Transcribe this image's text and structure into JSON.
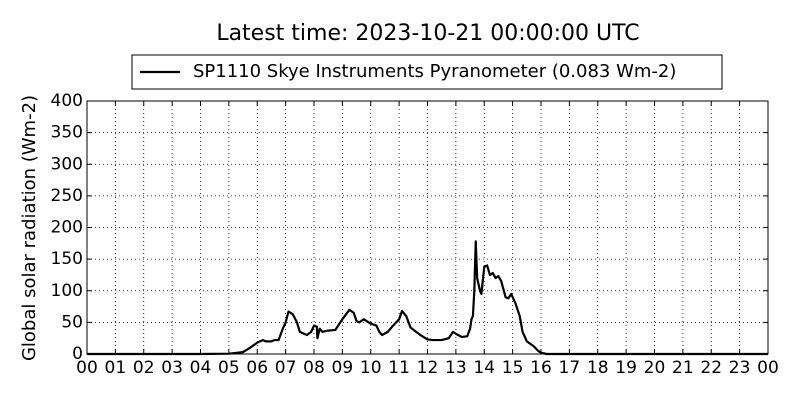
{
  "chart_data": {
    "type": "line",
    "title": "Latest time: 2023-10-21 00:00:00 UTC",
    "ylabel": "Global solar radiation (Wm-2)",
    "grid": true,
    "legend": "top",
    "x": [
      0,
      1,
      2,
      3,
      4,
      5,
      5.5,
      5.75,
      6.0,
      6.2,
      6.3,
      6.5,
      6.6,
      6.75,
      6.9,
      7.0,
      7.1,
      7.25,
      7.4,
      7.5,
      7.75,
      7.9,
      8.0,
      8.1,
      8.12,
      8.2,
      8.3,
      8.5,
      8.75,
      9.0,
      9.25,
      9.4,
      9.5,
      9.6,
      9.75,
      10.0,
      10.2,
      10.3,
      10.4,
      10.6,
      10.75,
      11.0,
      11.1,
      11.25,
      11.4,
      11.6,
      11.75,
      12.0,
      12.2,
      12.4,
      12.5,
      12.75,
      12.9,
      13.0,
      13.2,
      13.4,
      13.5,
      13.55,
      13.6,
      13.65,
      13.7,
      13.75,
      13.85,
      13.9,
      14.0,
      14.1,
      14.2,
      14.3,
      14.4,
      14.5,
      14.6,
      14.75,
      14.85,
      14.95,
      15.1,
      15.25,
      15.35,
      15.5,
      15.75,
      15.9,
      16.0,
      16.2,
      16.5,
      20,
      24
    ],
    "series": [
      {
        "name": "SP1110 Skye Instruments Pyranometer (0.083 Wm-2)",
        "color": "#000000",
        "values": [
          0,
          0,
          0,
          0,
          0,
          0.5,
          3,
          10,
          18,
          22,
          20,
          20,
          22,
          22,
          40,
          50,
          67,
          63,
          50,
          35,
          30,
          35,
          45,
          43,
          25,
          40,
          35,
          37,
          38,
          55,
          70,
          65,
          52,
          50,
          55,
          48,
          45,
          35,
          30,
          35,
          43,
          55,
          68,
          60,
          42,
          35,
          30,
          23,
          22,
          22,
          22,
          25,
          35,
          32,
          27,
          28,
          40,
          55,
          60,
          100,
          178,
          120,
          100,
          95,
          138,
          140,
          125,
          128,
          120,
          123,
          115,
          90,
          88,
          95,
          80,
          60,
          35,
          20,
          12,
          5,
          2,
          0,
          0,
          0,
          0
        ]
      }
    ],
    "xlim": [
      0,
      24
    ],
    "xticks": [
      {
        "value": 0,
        "label": "00"
      },
      {
        "value": 1,
        "label": "01"
      },
      {
        "value": 2,
        "label": "02"
      },
      {
        "value": 3,
        "label": "03"
      },
      {
        "value": 4,
        "label": "04"
      },
      {
        "value": 5,
        "label": "05"
      },
      {
        "value": 6,
        "label": "06"
      },
      {
        "value": 7,
        "label": "07"
      },
      {
        "value": 8,
        "label": "08"
      },
      {
        "value": 9,
        "label": "09"
      },
      {
        "value": 10,
        "label": "10"
      },
      {
        "value": 11,
        "label": "11"
      },
      {
        "value": 12,
        "label": "12"
      },
      {
        "value": 13,
        "label": "13"
      },
      {
        "value": 14,
        "label": "14"
      },
      {
        "value": 15,
        "label": "15"
      },
      {
        "value": 16,
        "label": "16"
      },
      {
        "value": 17,
        "label": "17"
      },
      {
        "value": 18,
        "label": "18"
      },
      {
        "value": 19,
        "label": "19"
      },
      {
        "value": 20,
        "label": "20"
      },
      {
        "value": 21,
        "label": "21"
      },
      {
        "value": 22,
        "label": "22"
      },
      {
        "value": 23,
        "label": "23"
      },
      {
        "value": 24,
        "label": "00"
      }
    ],
    "ylim": [
      0,
      400
    ],
    "yticks": [
      0,
      50,
      100,
      150,
      200,
      250,
      300,
      350,
      400
    ]
  }
}
